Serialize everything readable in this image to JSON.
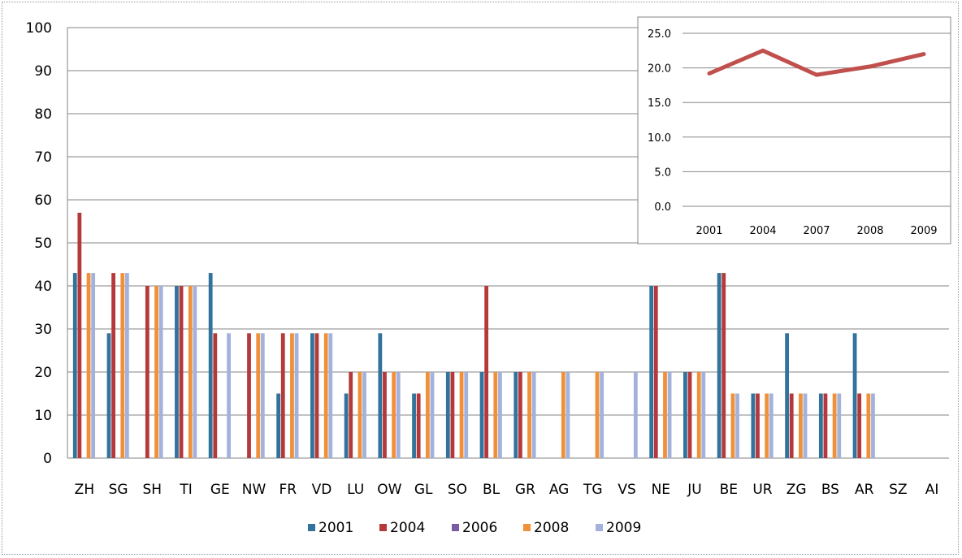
{
  "chart_data": [
    {
      "type": "bar",
      "title": "",
      "xlabel": "",
      "ylabel": "",
      "ylim": [
        0,
        100
      ],
      "yticks": [
        0,
        10,
        20,
        30,
        40,
        50,
        60,
        70,
        80,
        90,
        100
      ],
      "grid": true,
      "legend_position": "bottom",
      "categories": [
        "ZH",
        "SG",
        "SH",
        "TI",
        "GE",
        "NW",
        "FR",
        "VD",
        "LU",
        "OW",
        "GL",
        "SO",
        "BL",
        "GR",
        "AG",
        "TG",
        "VS",
        "NE",
        "JU",
        "BE",
        "UR",
        "ZG",
        "BS",
        "AR",
        "SZ",
        "AI"
      ],
      "series": [
        {
          "name": "2001",
          "color": "#31739c",
          "values": [
            43,
            29,
            0,
            40,
            43,
            0,
            15,
            29,
            15,
            29,
            15,
            20,
            20,
            20,
            0,
            0,
            0,
            40,
            20,
            43,
            15,
            29,
            15,
            29,
            0,
            0
          ]
        },
        {
          "name": "2004",
          "color": "#b5393b",
          "values": [
            57,
            43,
            40,
            40,
            29,
            29,
            29,
            29,
            20,
            20,
            15,
            20,
            40,
            20,
            0,
            0,
            0,
            40,
            20,
            43,
            15,
            15,
            15,
            15,
            0,
            0
          ]
        },
        {
          "name": "2006",
          "color": "#7a5ba3",
          "values": [
            0,
            0,
            0,
            0,
            0,
            0,
            0,
            0,
            0,
            0,
            0,
            0,
            0,
            0,
            0,
            0,
            0,
            0,
            0,
            0,
            0,
            0,
            0,
            0,
            0,
            0
          ]
        },
        {
          "name": "2008",
          "color": "#f0913a",
          "values": [
            43,
            43,
            40,
            40,
            0,
            29,
            29,
            29,
            20,
            20,
            20,
            20,
            20,
            20,
            20,
            20,
            0,
            20,
            20,
            15,
            15,
            15,
            15,
            15,
            0,
            0
          ]
        },
        {
          "name": "2009",
          "color": "#a3b2dd",
          "values": [
            43,
            43,
            40,
            40,
            29,
            29,
            29,
            29,
            20,
            20,
            20,
            20,
            20,
            20,
            20,
            20,
            20,
            20,
            20,
            15,
            15,
            15,
            15,
            15,
            0,
            0
          ]
        }
      ]
    },
    {
      "type": "line",
      "title": "",
      "xlabel": "",
      "ylabel": "",
      "ylim": [
        0,
        25
      ],
      "yticks": [
        "0.0",
        "5.0",
        "10.0",
        "15.0",
        "20.0",
        "25.0"
      ],
      "grid": true,
      "legend_position": "none",
      "categories": [
        "2001",
        "2004",
        "2007",
        "2008",
        "2009"
      ],
      "series": [
        {
          "color": "#c0504d",
          "values": [
            19.2,
            22.5,
            19.0,
            20.2,
            22.0
          ]
        }
      ]
    }
  ]
}
